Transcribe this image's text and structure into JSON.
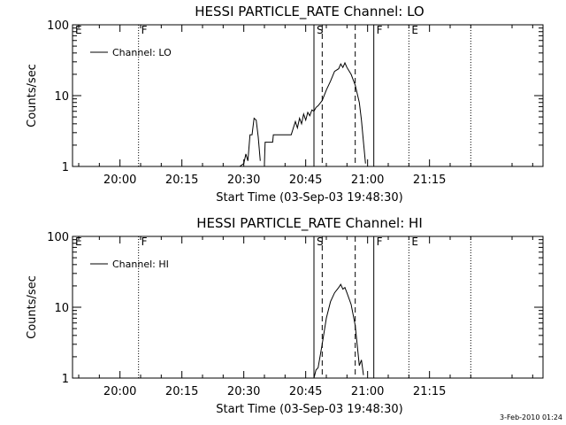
{
  "footer": {
    "timestamp": "3-Feb-2010 01:24"
  },
  "chart_data": [
    {
      "type": "line",
      "title": "HESSI PARTICLE_RATE Channel: LO",
      "xlabel": "Start Time (03-Sep-03 19:48:30)",
      "ylabel": "Counts/sec",
      "yscale": "log",
      "ylim": [
        1,
        100
      ],
      "xlim_minutes_of_day": [
        1188.5,
        1302.5
      ],
      "xticks": [
        "20:00",
        "20:15",
        "20:30",
        "20:45",
        "21:00",
        "21:15"
      ],
      "yticks": [
        "1",
        "10",
        "100"
      ],
      "legend": {
        "entries": [
          "Channel: LO"
        ],
        "placement": "top-left"
      },
      "flags": [
        {
          "label": "E",
          "time": "19:48:30",
          "style": "none"
        },
        {
          "label": "F",
          "time": "20:04:30",
          "style": "dotted"
        },
        {
          "label": "S",
          "time": "20:47:00",
          "style": "solid"
        },
        {
          "label": "",
          "time": "20:49:00",
          "style": "dashed"
        },
        {
          "label": "",
          "time": "20:57:00",
          "style": "dashed"
        },
        {
          "label": "F",
          "time": "21:01:30",
          "style": "solid"
        },
        {
          "label": "E",
          "time": "21:10:00",
          "style": "dotted"
        },
        {
          "label": "",
          "time": "21:25:00",
          "style": "dotted"
        }
      ],
      "series": [
        {
          "name": "Channel: LO",
          "segments": [
            [
              [
                "20:29:00",
                1
              ],
              [
                "20:30:00",
                1.1
              ],
              [
                "20:30:30",
                1.5
              ],
              [
                "20:31:00",
                1.2
              ],
              [
                "20:31:30",
                2.8
              ],
              [
                "20:32:00",
                2.8
              ],
              [
                "20:32:30",
                4.8
              ],
              [
                "20:33:00",
                4.5
              ],
              [
                "20:33:30",
                2.6
              ],
              [
                "20:34:00",
                1.2
              ]
            ],
            [
              [
                "20:35:00",
                1.1
              ],
              [
                "20:35:10",
                2.2
              ],
              [
                "20:37:00",
                2.2
              ],
              [
                "20:37:10",
                2.8
              ],
              [
                "20:41:30",
                2.8
              ],
              [
                "20:42:00",
                3.5
              ],
              [
                "20:42:30",
                4.3
              ],
              [
                "20:43:00",
                3.5
              ],
              [
                "20:43:30",
                4.8
              ],
              [
                "20:44:00",
                4.0
              ],
              [
                "20:44:30",
                5.5
              ],
              [
                "20:45:00",
                4.5
              ],
              [
                "20:45:30",
                5.8
              ],
              [
                "20:46:00",
                5.2
              ],
              [
                "20:46:30",
                6.3
              ],
              [
                "20:47:00",
                6.0
              ],
              [
                "20:47:30",
                6.8
              ],
              [
                "20:48:00",
                7.2
              ],
              [
                "20:49:00",
                8.5
              ],
              [
                "20:50:00",
                12.0
              ],
              [
                "20:51:00",
                16.0
              ],
              [
                "20:52:00",
                22.0
              ],
              [
                "20:53:00",
                24.0
              ],
              [
                "20:53:30",
                28.0
              ],
              [
                "20:54:00",
                25.0
              ],
              [
                "20:54:30",
                29.0
              ],
              [
                "20:55:00",
                25.0
              ],
              [
                "20:56:00",
                20.0
              ],
              [
                "20:57:00",
                14.0
              ],
              [
                "20:58:00",
                8.0
              ],
              [
                "20:58:30",
                4.5
              ],
              [
                "20:59:00",
                2.2
              ],
              [
                "20:59:30",
                1.1
              ]
            ]
          ]
        }
      ]
    },
    {
      "type": "line",
      "title": "HESSI PARTICLE_RATE Channel: HI",
      "xlabel": "Start Time (03-Sep-03 19:48:30)",
      "ylabel": "Counts/sec",
      "yscale": "log",
      "ylim": [
        1,
        100
      ],
      "xlim_minutes_of_day": [
        1188.5,
        1302.5
      ],
      "xticks": [
        "20:00",
        "20:15",
        "20:30",
        "20:45",
        "21:00",
        "21:15"
      ],
      "yticks": [
        "1",
        "10",
        "100"
      ],
      "legend": {
        "entries": [
          "Channel: HI"
        ],
        "placement": "top-left"
      },
      "flags": [
        {
          "label": "E",
          "time": "19:48:30",
          "style": "none"
        },
        {
          "label": "F",
          "time": "20:04:30",
          "style": "dotted"
        },
        {
          "label": "S",
          "time": "20:47:00",
          "style": "solid"
        },
        {
          "label": "",
          "time": "20:49:00",
          "style": "dashed"
        },
        {
          "label": "",
          "time": "20:57:00",
          "style": "dashed"
        },
        {
          "label": "F",
          "time": "21:01:30",
          "style": "solid"
        },
        {
          "label": "E",
          "time": "21:10:00",
          "style": "dotted"
        },
        {
          "label": "",
          "time": "21:25:00",
          "style": "dotted"
        }
      ],
      "series": [
        {
          "name": "Channel: HI",
          "segments": [
            [
              [
                "20:47:00",
                1
              ],
              [
                "20:47:30",
                1.3
              ],
              [
                "20:48:00",
                1.4
              ],
              [
                "20:49:00",
                3.0
              ],
              [
                "20:50:00",
                7.0
              ],
              [
                "20:51:00",
                12.0
              ],
              [
                "20:52:00",
                16.0
              ],
              [
                "20:53:00",
                19.0
              ],
              [
                "20:53:30",
                21.0
              ],
              [
                "20:54:00",
                18.0
              ],
              [
                "20:54:30",
                19.0
              ],
              [
                "20:55:00",
                16.0
              ],
              [
                "20:56:00",
                11.0
              ],
              [
                "20:57:00",
                5.5
              ],
              [
                "20:58:00",
                1.5
              ],
              [
                "20:58:30",
                1.8
              ],
              [
                "20:59:00",
                1.1
              ]
            ]
          ]
        }
      ]
    }
  ]
}
